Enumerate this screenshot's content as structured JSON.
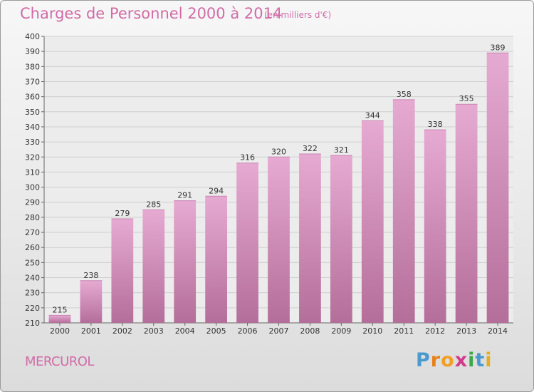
{
  "header": {
    "title": "Charges de Personnel 2000 à 2014",
    "subtitle": "(en milliers d'€)"
  },
  "footer": {
    "commune": "MERCUROL",
    "logo_text": "Proxiti"
  },
  "colors": {
    "bar_top": "#e6aad2",
    "bar_bottom": "#b46e9a",
    "title": "#d06ca6",
    "logo": [
      "#4a9ad0",
      "#e4821c",
      "#f0a020",
      "#d23a8c",
      "#3aa84a",
      "#4a9ad0",
      "#e0b020"
    ]
  },
  "chart_data": {
    "type": "bar",
    "categories": [
      "2000",
      "2001",
      "2002",
      "2003",
      "2004",
      "2005",
      "2006",
      "2007",
      "2008",
      "2009",
      "2010",
      "2011",
      "2012",
      "2013",
      "2014"
    ],
    "values": [
      215,
      238,
      279,
      285,
      291,
      294,
      316,
      320,
      322,
      321,
      344,
      358,
      338,
      355,
      389
    ],
    "ylim": [
      210,
      400
    ],
    "ytick_step": 10,
    "grid": true
  }
}
